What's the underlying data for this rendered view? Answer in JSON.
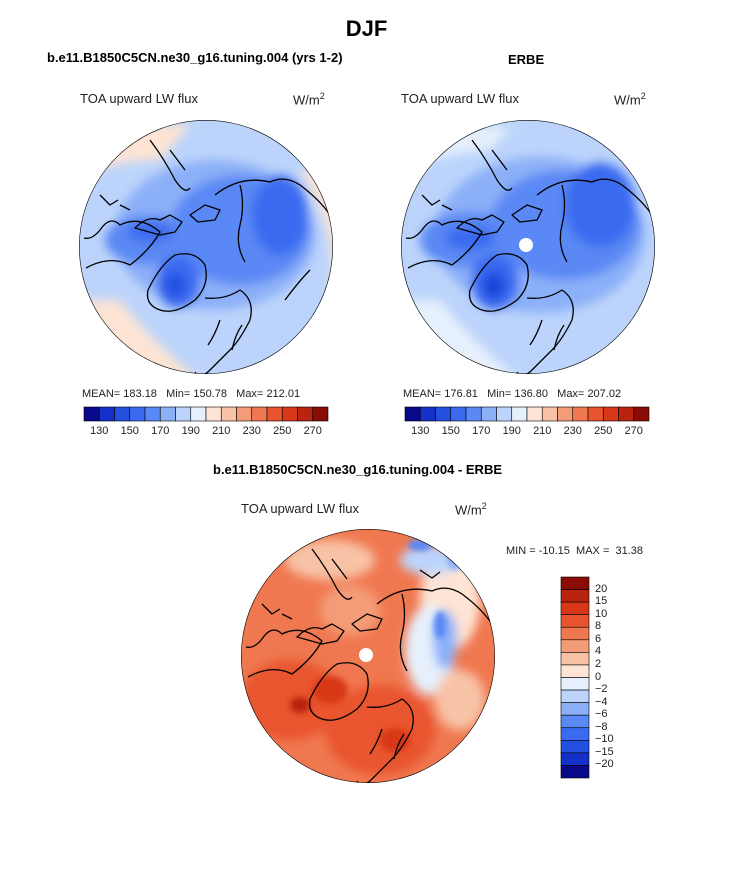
{
  "page_title": "DJF",
  "chart_data": [
    {
      "type": "heatmap",
      "projection": "north-polar-stereographic",
      "title": "b.e11.B1850C5CN.ne30_g16.tuning.004 (yrs 1-2)",
      "variable": "TOA upward LW flux",
      "units_base": "W/m",
      "units_exp": "2",
      "stats": {
        "mean_label": "MEAN=",
        "mean": "183.18",
        "min_label": "Min=",
        "min": "150.78",
        "max_label": "Max=",
        "max": "212.01"
      },
      "colorbar": {
        "orientation": "horizontal",
        "tick_labels": [
          "130",
          "150",
          "170",
          "190",
          "210",
          "230",
          "250",
          "270"
        ],
        "colors": [
          "#08088a",
          "#1530c8",
          "#2450e0",
          "#3a6af0",
          "#5a88f4",
          "#8cb0f8",
          "#bcd4fb",
          "#e6f0fc",
          "#fde4d4",
          "#f8c2a6",
          "#f49c78",
          "#f07850",
          "#e8542e",
          "#d83818",
          "#b82410",
          "#8a0c06"
        ]
      }
    },
    {
      "type": "heatmap",
      "projection": "north-polar-stereographic",
      "title": "ERBE",
      "variable": "TOA upward LW flux",
      "units_base": "W/m",
      "units_exp": "2",
      "stats": {
        "mean_label": "MEAN=",
        "mean": "176.81",
        "min_label": "Min=",
        "min": "136.80",
        "max_label": "Max=",
        "max": "207.02"
      },
      "colorbar": {
        "orientation": "horizontal",
        "tick_labels": [
          "130",
          "150",
          "170",
          "190",
          "210",
          "230",
          "250",
          "270"
        ],
        "colors": [
          "#08088a",
          "#1530c8",
          "#2450e0",
          "#3a6af0",
          "#5a88f4",
          "#8cb0f8",
          "#bcd4fb",
          "#e6f0fc",
          "#fde4d4",
          "#f8c2a6",
          "#f49c78",
          "#f07850",
          "#e8542e",
          "#d83818",
          "#b82410",
          "#8a0c06"
        ]
      }
    },
    {
      "type": "heatmap",
      "projection": "north-polar-stereographic",
      "title": "b.e11.B1850C5CN.ne30_g16.tuning.004 - ERBE",
      "variable": "TOA upward LW flux",
      "units_base": "W/m",
      "units_exp": "2",
      "minmax": {
        "min_label": "MIN =",
        "min": "-10.15",
        "max_label": "MAX =",
        "max": "31.38"
      },
      "colorbar": {
        "orientation": "vertical",
        "tick_labels": [
          "20",
          "15",
          "10",
          "8",
          "6",
          "4",
          "2",
          "0",
          "−2",
          "−4",
          "−6",
          "−8",
          "−10",
          "−15",
          "−20"
        ],
        "colors": [
          "#8a0c06",
          "#b82410",
          "#d83818",
          "#e8542e",
          "#f07850",
          "#f49c78",
          "#f8c2a6",
          "#fde4d4",
          "#e6f0fc",
          "#bcd4fb",
          "#8cb0f8",
          "#5a88f4",
          "#3a6af0",
          "#2450e0",
          "#1530c8",
          "#08088a"
        ]
      }
    }
  ]
}
